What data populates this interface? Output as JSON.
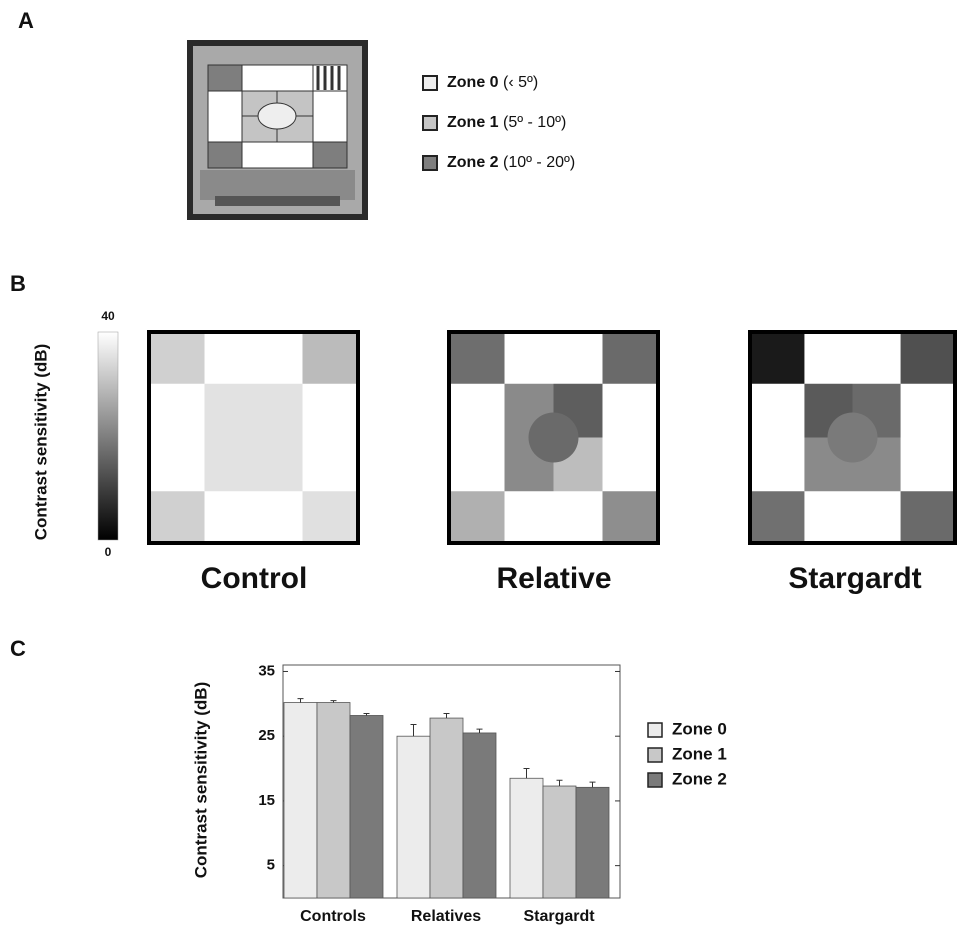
{
  "panel_labels": [
    "A",
    "B",
    "C"
  ],
  "panel_a": {
    "legend": [
      {
        "zone": "Zone 0",
        "range": "(‹ 5º)",
        "color": "#eeeeee"
      },
      {
        "zone": "Zone 1",
        "range": "(5º - 10º)",
        "color": "#c4c4c4"
      },
      {
        "zone": "Zone 2",
        "range": "(10º - 20º)",
        "color": "#7e7e7e"
      }
    ]
  },
  "panel_b": {
    "colorbar": {
      "label": "Contrast sensitivity (dB)",
      "ticks": [
        0,
        40
      ]
    },
    "maps": [
      {
        "label": "Control",
        "corners": [
          "#d0d0d0",
          "#bbbbbb",
          "#d0d0d0",
          "#e0e0e0"
        ],
        "center": [
          "#e2e2e2",
          "#e2e2e2",
          "#e2e2e2",
          "#e2e2e2"
        ],
        "circle": "#e2e2e2"
      },
      {
        "label": "Relative",
        "corners": [
          "#6e6e6e",
          "#6a6a6a",
          "#b0b0b0",
          "#8e8e8e"
        ],
        "center": [
          "#8a8a8a",
          "#5e5e5e",
          "#8a8a8a",
          "#bdbdbd"
        ],
        "circle": "#6a6a6a"
      },
      {
        "label": "Stargardt",
        "corners": [
          "#1a1a1a",
          "#505050",
          "#707070",
          "#6a6a6a"
        ],
        "center": [
          "#5a5a5a",
          "#6a6a6a",
          "#8a8a8a",
          "#8a8a8a"
        ],
        "circle": "#7a7a7a"
      }
    ]
  },
  "chart_data": {
    "type": "bar",
    "y_label": "Contrast sensitivity (dB)",
    "categories": [
      "Controls",
      "Relatives",
      "Stargardt"
    ],
    "series": [
      {
        "name": "Zone 0",
        "color": "#ececec",
        "values": [
          30.2,
          25,
          18.5
        ],
        "errors": [
          0.6,
          1.8,
          1.5
        ]
      },
      {
        "name": "Zone 1",
        "color": "#c8c8c8",
        "values": [
          30.2,
          27.8,
          17.3
        ],
        "errors": [
          0.3,
          0.7,
          0.9
        ]
      },
      {
        "name": "Zone 2",
        "color": "#7a7a7a",
        "values": [
          28.2,
          25.5,
          17.1
        ],
        "errors": [
          0.3,
          0.6,
          0.8
        ]
      }
    ],
    "ylim": [
      0,
      36
    ],
    "yticks": [
      5,
      15,
      25,
      35
    ]
  }
}
